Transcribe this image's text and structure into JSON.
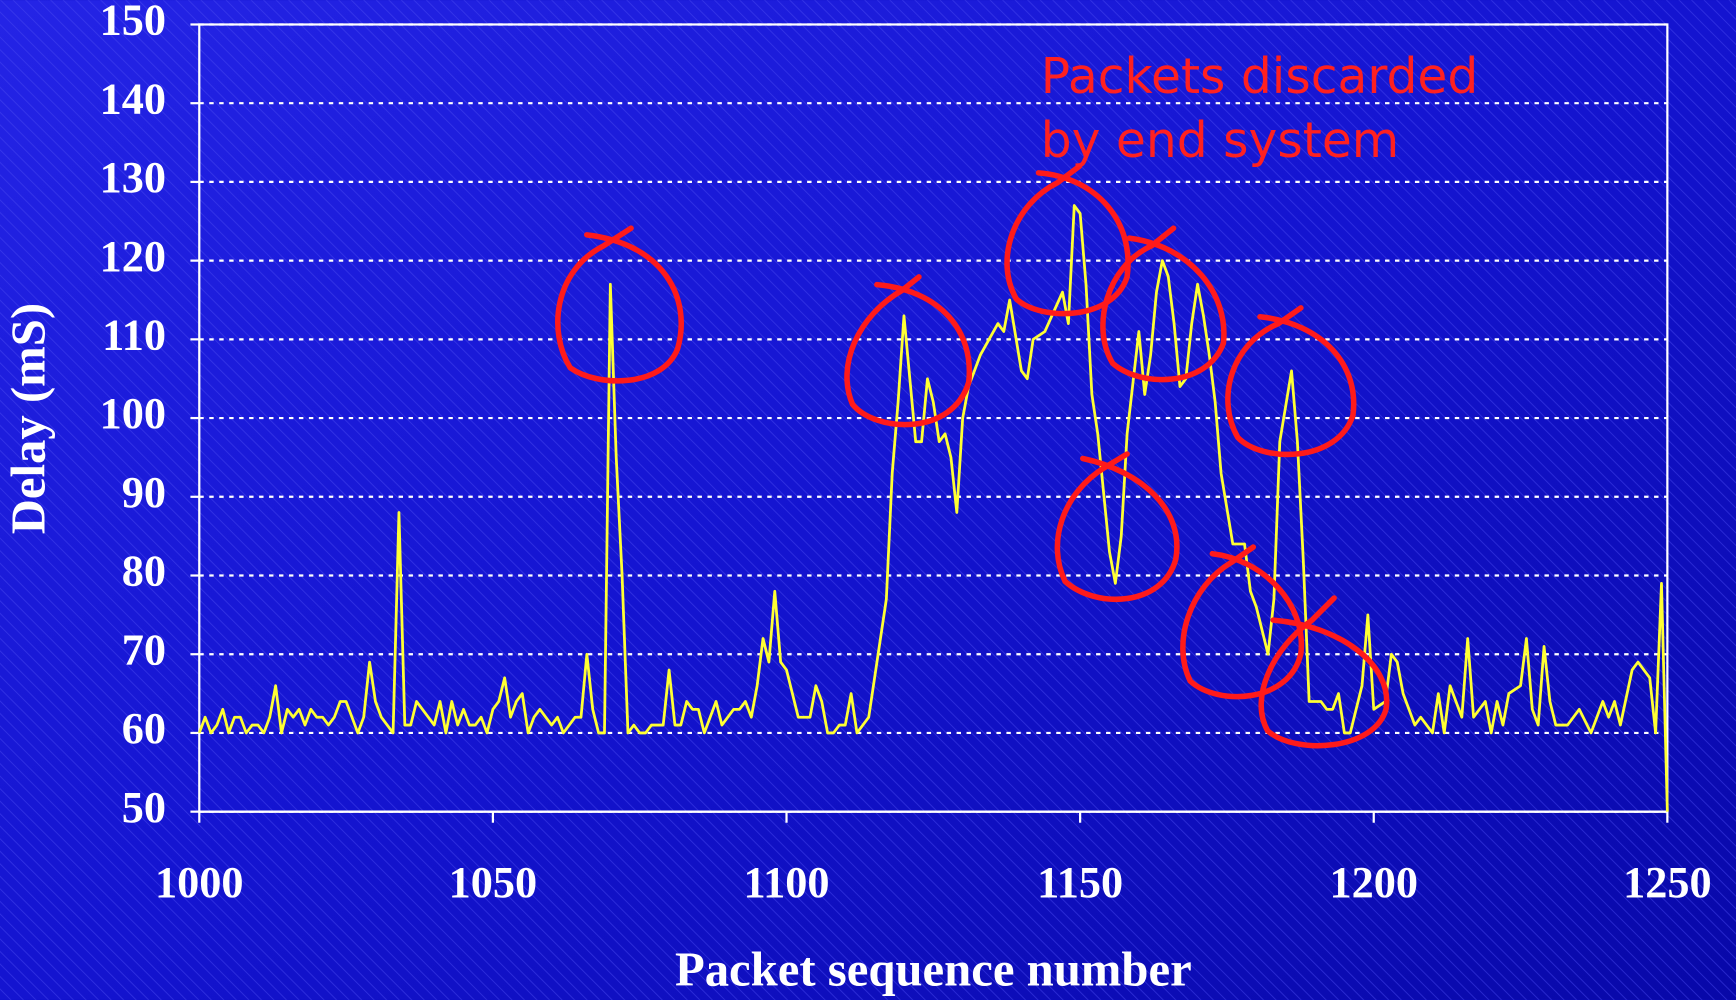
{
  "chart_data": {
    "type": "line",
    "annotation": [
      "Packets discarded",
      "by end system"
    ],
    "xlabel": "Packet sequence number",
    "ylabel": "Delay (mS)",
    "x": [
      1000,
      1001,
      1002,
      1003,
      1004,
      1005,
      1006,
      1007,
      1008,
      1009,
      1010,
      1011,
      1012,
      1013,
      1014,
      1015,
      1016,
      1017,
      1018,
      1019,
      1020,
      1021,
      1022,
      1023,
      1024,
      1025,
      1026,
      1027,
      1028,
      1029,
      1030,
      1031,
      1032,
      1033,
      1034,
      1035,
      1036,
      1037,
      1038,
      1039,
      1040,
      1041,
      1042,
      1043,
      1044,
      1045,
      1046,
      1047,
      1048,
      1049,
      1050,
      1051,
      1052,
      1053,
      1054,
      1055,
      1056,
      1057,
      1058,
      1059,
      1060,
      1061,
      1062,
      1063,
      1064,
      1065,
      1066,
      1067,
      1068,
      1069,
      1070,
      1071,
      1072,
      1073,
      1074,
      1075,
      1076,
      1077,
      1078,
      1079,
      1080,
      1081,
      1082,
      1083,
      1084,
      1085,
      1086,
      1087,
      1088,
      1089,
      1090,
      1091,
      1092,
      1093,
      1094,
      1095,
      1096,
      1097,
      1098,
      1099,
      1100,
      1101,
      1102,
      1103,
      1104,
      1105,
      1106,
      1107,
      1108,
      1109,
      1110,
      1111,
      1112,
      1113,
      1114,
      1115,
      1116,
      1117,
      1118,
      1119,
      1120,
      1121,
      1122,
      1123,
      1124,
      1125,
      1126,
      1127,
      1128,
      1129,
      1130,
      1131,
      1133,
      1136,
      1137,
      1138,
      1140,
      1141,
      1142,
      1144,
      1147,
      1148,
      1149,
      1150,
      1151,
      1152,
      1153,
      1155,
      1156,
      1157,
      1158,
      1160,
      1161,
      1162,
      1163,
      1164,
      1165,
      1166,
      1167,
      1168,
      1169,
      1170,
      1171,
      1172,
      1173,
      1174,
      1176,
      1178,
      1179,
      1180,
      1182,
      1183,
      1184,
      1186,
      1187,
      1188,
      1189,
      1190,
      1191,
      1192,
      1193,
      1194,
      1195,
      1196,
      1198,
      1199,
      1200,
      1202,
      1203,
      1204,
      1205,
      1207,
      1208,
      1210,
      1211,
      1212,
      1213,
      1215,
      1216,
      1217,
      1219,
      1220,
      1221,
      1222,
      1223,
      1225,
      1226,
      1227,
      1228,
      1229,
      1230,
      1231,
      1233,
      1235,
      1237,
      1239,
      1240,
      1241,
      1242,
      1244,
      1245,
      1247,
      1248,
      1249,
      1250
    ],
    "series": [
      {
        "color": "#ffff33",
        "values": [
          60,
          62,
          60,
          61,
          63,
          60,
          62,
          62,
          60,
          61,
          61,
          60,
          62,
          66,
          60,
          63,
          62,
          63,
          61,
          63,
          62,
          62,
          61,
          62,
          64,
          64,
          62,
          60,
          62,
          69,
          64,
          62,
          61,
          60,
          88,
          61,
          61,
          64,
          63,
          62,
          61,
          64,
          60,
          64,
          61,
          63,
          61,
          61,
          62,
          60,
          63,
          64,
          67,
          62,
          64,
          65,
          60,
          62,
          63,
          62,
          61,
          62,
          60,
          61,
          62,
          62,
          70,
          63,
          60,
          60,
          117,
          95,
          80,
          60,
          61,
          60,
          60,
          61,
          61,
          61,
          68,
          61,
          61,
          64,
          63,
          63,
          60,
          62,
          64,
          61,
          62,
          63,
          63,
          64,
          62,
          66,
          72,
          69,
          78,
          69,
          68,
          65,
          62,
          62,
          62,
          66,
          64,
          60,
          60,
          61,
          61,
          65,
          60,
          61,
          62,
          67,
          72,
          77,
          93,
          102,
          113,
          105,
          97,
          97,
          105,
          102,
          97,
          98,
          95,
          88,
          100,
          104,
          108,
          112,
          111,
          115,
          106,
          105,
          110,
          111,
          116,
          112,
          127,
          126,
          117,
          103,
          98,
          83,
          79,
          85,
          98,
          111,
          103,
          108,
          116,
          120,
          118,
          112,
          104,
          105,
          112,
          117,
          113,
          108,
          102,
          93,
          84,
          84,
          78,
          76,
          70,
          77,
          97,
          106,
          97,
          82,
          64,
          64,
          64,
          63,
          63,
          65,
          60,
          60,
          66,
          75,
          63,
          64,
          70,
          69,
          65,
          61,
          62,
          60,
          65,
          60,
          66,
          62,
          72,
          62,
          64,
          60,
          64,
          61,
          65,
          66,
          72,
          63,
          61,
          71,
          64,
          61,
          61,
          63,
          60,
          64,
          62,
          64,
          61,
          68,
          69,
          67,
          60,
          79,
          50
        ]
      }
    ],
    "xlim": [
      1000,
      1250
    ],
    "ylim": [
      50,
      150
    ],
    "xticks": [
      1000,
      1050,
      1100,
      1150,
      1200,
      1250
    ],
    "yticks": [
      50,
      60,
      70,
      80,
      90,
      100,
      110,
      120,
      130,
      140,
      150
    ],
    "grid": true
  }
}
